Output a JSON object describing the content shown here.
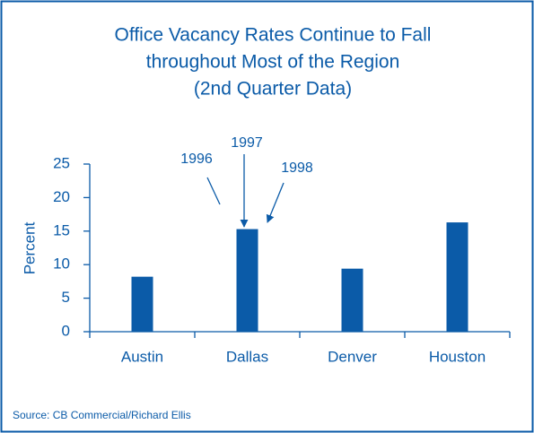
{
  "chart_data": {
    "type": "bar",
    "title": [
      "Office Vacancy Rates Continue to Fall",
      "throughout Most of the Region",
      "(2nd Quarter Data)"
    ],
    "ylabel": "Percent",
    "categories": [
      "Austin",
      "Dallas",
      "Denver",
      "Houston"
    ],
    "values": [
      8.2,
      15.3,
      9.4,
      16.3
    ],
    "color": "#0b5ba8",
    "ylim": [
      0,
      25
    ],
    "yticks": [
      0,
      5,
      10,
      15,
      20,
      25
    ],
    "annotations": [
      "1996",
      "1997",
      "1998"
    ],
    "source": "Source: CB Commercial/Richard Ellis"
  }
}
